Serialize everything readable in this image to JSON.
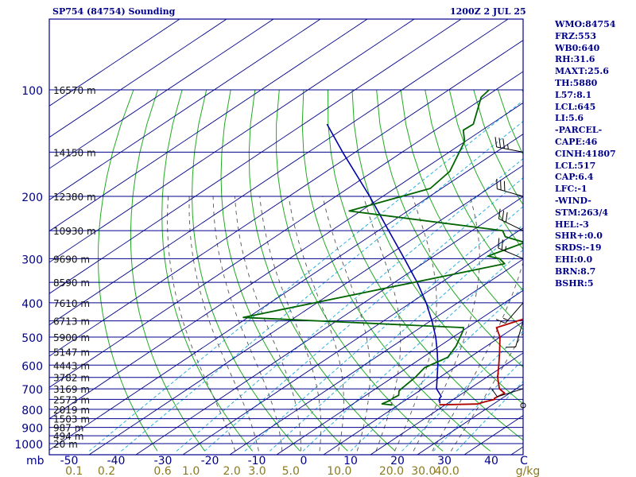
{
  "header": {
    "title": "SP754 (84754) Sounding",
    "time": "1200Z  2 JUL 25"
  },
  "sidebar": {
    "lines": [
      "WMO:84754",
      "FRZ:553",
      "WB0:640",
      "RH:31.6",
      "MAXT:25.6",
      "TH:5880",
      "L57:8.1",
      "LCL:645",
      "LI:5.6",
      "-PARCEL-",
      "CAPE:46",
      "CINH:41807",
      "LCL:517",
      "CAP:6.4",
      "LFC:-1",
      "-WIND-",
      "STM:263/4",
      "HEL:-3",
      "SHR+:0.0",
      "SRDS:-19",
      "EHI:0.0",
      "BRN:8.7",
      "BSHR:5"
    ]
  },
  "chart_data": {
    "type": "skew-t",
    "pressure_ticks": [
      "100",
      "200",
      "300",
      "400",
      "500",
      "600",
      "700",
      "800",
      "900",
      "1000"
    ],
    "pressure_corner_label": "mb",
    "height_labels": [
      {
        "p": 100,
        "text": "16570 m"
      },
      {
        "p": 150,
        "text": "14150 m"
      },
      {
        "p": 200,
        "text": "12380 m"
      },
      {
        "p": 250,
        "text": "10930 m"
      },
      {
        "p": 300,
        "text": "9690 m"
      },
      {
        "p": 350,
        "text": "8590 m"
      },
      {
        "p": 400,
        "text": "7610 m"
      },
      {
        "p": 450,
        "text": "6713 m"
      },
      {
        "p": 500,
        "text": "5900 m"
      },
      {
        "p": 550,
        "text": "5147 m"
      },
      {
        "p": 600,
        "text": "4443 m"
      },
      {
        "p": 650,
        "text": "3782 m"
      },
      {
        "p": 700,
        "text": "3169 m"
      },
      {
        "p": 750,
        "text": "2573 m"
      },
      {
        "p": 800,
        "text": "2019 m"
      },
      {
        "p": 850,
        "text": "1503 m"
      },
      {
        "p": 900,
        "text": "987 m"
      },
      {
        "p": 950,
        "text": "494 m"
      },
      {
        "p": 1000,
        "text": "20 m"
      }
    ],
    "temperature_ticks": [
      "-50",
      "-40",
      "-30",
      "-20",
      "-10",
      "0",
      "10",
      "20",
      "30",
      "40",
      "C"
    ],
    "mixing_ratio_ticks": [
      "0.1",
      "0.2",
      "0.6",
      "1.0",
      "2.0",
      "3.0",
      "5.0",
      "10.0",
      "20.0",
      "30.0",
      "40.0",
      "g/kg"
    ],
    "colors": {
      "border": "#00008b",
      "isobar": "#00008b",
      "isotherm": "#00008b",
      "dry_adiabat": "#22aa22",
      "moist_adiabat": "#555555",
      "mixing_ratio": "#2ab0e0",
      "temperature": "#b00000",
      "dewpoint": "#006400",
      "parcel": "#0000aa",
      "tick_text": "#00008b",
      "mixing_text": "#8b7a20"
    },
    "temperature_profile": [
      {
        "p": 777,
        "t": 18.7
      },
      {
        "p": 773,
        "t": 26.6
      },
      {
        "p": 762,
        "t": 27.4
      },
      {
        "p": 750,
        "t": 28.8
      },
      {
        "p": 745,
        "t": 28.4
      },
      {
        "p": 720,
        "t": 28.9
      },
      {
        "p": 700,
        "t": 26.4
      },
      {
        "p": 650,
        "t": 22.4
      },
      {
        "p": 600,
        "t": 18.7
      },
      {
        "p": 550,
        "t": 14.6
      },
      {
        "p": 500,
        "t": 10.0
      },
      {
        "p": 470,
        "t": 6.2
      },
      {
        "p": 460,
        "t": 7.4
      },
      {
        "p": 440,
        "t": 9.8
      },
      {
        "p": 400,
        "t": 5.5
      },
      {
        "p": 350,
        "t": -0.5
      },
      {
        "p": 300,
        "t": -6.7
      },
      {
        "p": 270,
        "t": -12.3
      },
      {
        "p": 250,
        "t": -17.1
      },
      {
        "p": 200,
        "t": -28.7
      },
      {
        "p": 170,
        "t": -36.7
      },
      {
        "p": 150,
        "t": -42.1
      },
      {
        "p": 135,
        "t": -48.3
      },
      {
        "p": 130,
        "t": -51.1
      },
      {
        "p": 125,
        "t": -52.1
      },
      {
        "p": 110,
        "t": -57.4
      },
      {
        "p": 103,
        "t": -62.3
      },
      {
        "p": 100,
        "t": -62.0
      }
    ],
    "dewpoint_profile": [
      {
        "p": 778,
        "t": 8.8
      },
      {
        "p": 772,
        "t": 6.2
      },
      {
        "p": 755,
        "t": 6.8
      },
      {
        "p": 745,
        "t": 6.7
      },
      {
        "p": 730,
        "t": 7.0
      },
      {
        "p": 710,
        "t": 5.7
      },
      {
        "p": 700,
        "t": 5.5
      },
      {
        "p": 650,
        "t": 4.8
      },
      {
        "p": 610,
        "t": 3.7
      },
      {
        "p": 570,
        "t": 5.3
      },
      {
        "p": 530,
        "t": 3.5
      },
      {
        "p": 480,
        "t": 0.1
      },
      {
        "p": 470,
        "t": -0.8
      },
      {
        "p": 440,
        "t": -51.0
      },
      {
        "p": 310,
        "t": -12.5
      },
      {
        "p": 300,
        "t": -15.2
      },
      {
        "p": 295,
        "t": -18.5
      },
      {
        "p": 270,
        "t": -15.0
      },
      {
        "p": 260,
        "t": -21.0
      },
      {
        "p": 250,
        "t": -23.5
      },
      {
        "p": 220,
        "t": -62.5
      },
      {
        "p": 190,
        "t": -52.4
      },
      {
        "p": 170,
        "t": -53.7
      },
      {
        "p": 140,
        "t": -60.1
      },
      {
        "p": 130,
        "t": -64.0
      },
      {
        "p": 125,
        "t": -63.8
      },
      {
        "p": 105,
        "t": -70.7
      },
      {
        "p": 100,
        "t": -71.4
      }
    ],
    "parcel_profile": [
      {
        "p": 770,
        "t": 18.4
      },
      {
        "p": 745,
        "t": 16.7
      },
      {
        "p": 735,
        "t": 16.4
      },
      {
        "p": 700,
        "t": 13.0
      },
      {
        "p": 600,
        "t": 5.7
      },
      {
        "p": 550,
        "t": 1.3
      },
      {
        "p": 500,
        "t": -3.7
      },
      {
        "p": 450,
        "t": -9.7
      },
      {
        "p": 400,
        "t": -16.7
      },
      {
        "p": 350,
        "t": -25.2
      },
      {
        "p": 300,
        "t": -35.5
      },
      {
        "p": 250,
        "t": -47.8
      },
      {
        "p": 200,
        "t": -62.8
      },
      {
        "p": 150,
        "t": -82.7
      },
      {
        "p": 125,
        "t": -95.0
      }
    ],
    "wind_barbs": [
      {
        "p": 150,
        "dir": 281,
        "speed": 35
      },
      {
        "p": 200,
        "dir": 286,
        "speed": 30
      },
      {
        "p": 250,
        "dir": 296,
        "speed": 30
      },
      {
        "p": 300,
        "dir": 293,
        "speed": 25
      },
      {
        "p": 400,
        "dir": 221,
        "speed": 15
      },
      {
        "p": 450,
        "dir": 196,
        "speed": 10
      },
      {
        "p": 700,
        "dir": 253,
        "speed": 10
      },
      {
        "p": 780,
        "dir": 0,
        "speed": 0
      }
    ]
  }
}
